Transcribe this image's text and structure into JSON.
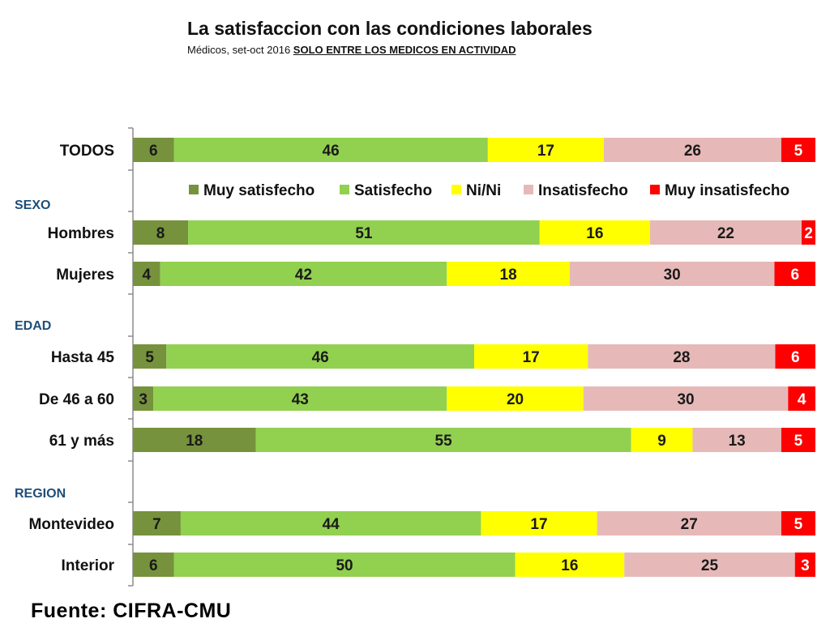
{
  "title": "La satisfaccion con las condiciones laborales",
  "subtitle_prefix": "Médicos, set-oct 2016 ",
  "subtitle_emphasis": "SOLO ENTRE LOS MEDICOS EN ACTIVIDAD",
  "source": "Fuente: CIFRA-CMU",
  "chart_data": {
    "type": "bar",
    "orientation": "horizontal",
    "stacked": true,
    "percent_stacked": true,
    "legend_position": "inside-top",
    "groups": [
      {
        "label": "",
        "rows": [
          0
        ]
      },
      {
        "label": "SEXO",
        "rows": [
          1,
          2
        ]
      },
      {
        "label": "EDAD",
        "rows": [
          3,
          4,
          5
        ]
      },
      {
        "label": "REGION",
        "rows": [
          6,
          7
        ]
      }
    ],
    "categories": [
      "TODOS",
      "Hombres",
      "Mujeres",
      "Hasta 45",
      "De 46 a 60",
      "61 y más",
      "Montevideo",
      "Interior"
    ],
    "series": [
      {
        "name": "Muy satisfecho",
        "color": "#76923c",
        "values": [
          6,
          8,
          4,
          5,
          3,
          18,
          7,
          6
        ]
      },
      {
        "name": "Satisfecho",
        "color": "#92d050",
        "values": [
          46,
          51,
          42,
          46,
          43,
          55,
          44,
          50
        ]
      },
      {
        "name": "Ni/Ni",
        "color": "#ffff00",
        "values": [
          17,
          16,
          18,
          17,
          20,
          9,
          17,
          16
        ]
      },
      {
        "name": "Insatisfecho",
        "color": "#e6b9b8",
        "values": [
          26,
          22,
          30,
          28,
          30,
          13,
          27,
          25
        ]
      },
      {
        "name": "Muy insatisfecho",
        "color": "#ff0000",
        "values": [
          5,
          2,
          6,
          6,
          4,
          5,
          5,
          3
        ]
      }
    ],
    "label_colors": [
      "#1a1a1a",
      "#1a1a1a",
      "#1a1a1a",
      "#1a1a1a",
      "#ffffff"
    ]
  }
}
